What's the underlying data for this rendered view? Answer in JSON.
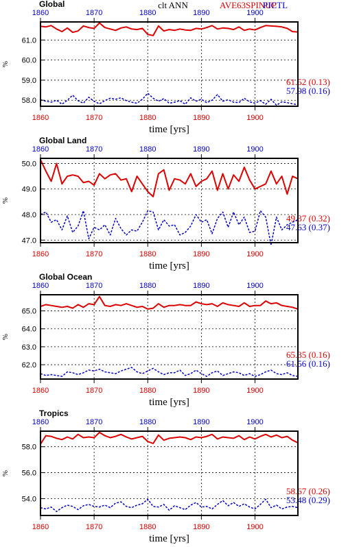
{
  "header": {
    "title": "clt ANN",
    "run_a": "AVE63SPINUP",
    "run_b": "PICTL",
    "color_a": "#dd0000",
    "color_b": "#0000cc"
  },
  "chart_data": [
    {
      "type": "line",
      "title": "Global",
      "xlabel": "time [yrs]",
      "ylabel": "%",
      "xlim": [
        1860,
        1908
      ],
      "ylim": [
        57.7,
        61.9
      ],
      "x_ticks": [
        1860,
        1870,
        1880,
        1890,
        1900
      ],
      "x_tick_labels": [
        "1860",
        "1870",
        "1880",
        "1890",
        "1900"
      ],
      "y_ticks": [
        58.0,
        59.0,
        60.0,
        61.0
      ],
      "y_tick_labels": [
        "58.0",
        "59.0",
        "60.0",
        "61.0"
      ],
      "grid": true,
      "series": [
        {
          "name": "AVE63SPINUP",
          "color": "#dd0000",
          "style": "solid",
          "summary": "61.52 (0.13)",
          "values": [
            61.68,
            61.65,
            61.72,
            61.55,
            61.42,
            61.6,
            61.38,
            61.45,
            61.7,
            61.62,
            61.58,
            61.85,
            61.62,
            61.55,
            61.48,
            61.6,
            61.65,
            61.55,
            61.52,
            61.58,
            61.28,
            61.22,
            61.7,
            61.45,
            61.52,
            61.48,
            61.55,
            61.5,
            61.48,
            61.58,
            61.55,
            61.62,
            61.72,
            61.55,
            61.6,
            61.58,
            61.52,
            61.65,
            61.48,
            61.55,
            61.5,
            61.62,
            61.72,
            61.7,
            61.68,
            61.65,
            61.58,
            61.42,
            61.4
          ]
        },
        {
          "name": "PICTL",
          "color": "#0000cc",
          "style": "dashed",
          "summary": "57.98 (0.16)",
          "values": [
            58.02,
            57.95,
            57.9,
            58.0,
            57.8,
            58.0,
            58.25,
            57.98,
            57.85,
            58.15,
            57.95,
            57.82,
            57.98,
            58.1,
            58.05,
            58.12,
            57.98,
            57.9,
            57.85,
            58.05,
            58.35,
            58.1,
            57.95,
            58.08,
            57.85,
            57.9,
            57.98,
            57.8,
            58.12,
            57.95,
            58.05,
            57.88,
            58.0,
            58.28,
            57.95,
            58.02,
            57.9,
            57.88,
            58.1,
            57.92,
            57.85,
            57.98,
            57.8,
            58.05,
            57.75,
            57.92,
            57.88,
            57.82,
            57.78
          ]
        }
      ]
    },
    {
      "type": "line",
      "title": "Global Land",
      "xlabel": "time [yrs]",
      "ylabel": "%",
      "xlim": [
        1860,
        1908
      ],
      "ylim": [
        46.9,
        50.2
      ],
      "x_ticks": [
        1860,
        1870,
        1880,
        1890,
        1900
      ],
      "x_tick_labels": [
        "1860",
        "1870",
        "1880",
        "1890",
        "1900"
      ],
      "y_ticks": [
        47.0,
        48.0,
        49.0,
        50.0
      ],
      "y_tick_labels": [
        "47.0",
        "48.0",
        "49.0",
        "50.0"
      ],
      "grid": true,
      "series": [
        {
          "name": "AVE63SPINUP",
          "color": "#dd0000",
          "style": "solid",
          "summary": "49.37 (0.32)",
          "values": [
            50.15,
            49.7,
            49.3,
            50.0,
            49.2,
            49.5,
            49.55,
            49.5,
            49.25,
            49.3,
            49.15,
            49.6,
            49.4,
            49.55,
            49.6,
            49.35,
            49.4,
            48.9,
            49.5,
            49.2,
            48.9,
            48.7,
            49.6,
            49.75,
            48.95,
            49.4,
            49.35,
            49.2,
            49.6,
            49.1,
            49.3,
            49.4,
            49.7,
            48.95,
            49.6,
            49.0,
            49.55,
            49.3,
            49.85,
            49.35,
            49.0,
            49.1,
            49.2,
            49.7,
            49.2,
            49.5,
            48.8,
            49.5,
            49.4
          ]
        },
        {
          "name": "PICTL",
          "color": "#0000cc",
          "style": "dashed",
          "summary": "47.63 (0.37)",
          "values": [
            48.0,
            48.1,
            47.7,
            47.8,
            47.4,
            47.95,
            47.3,
            47.55,
            48.15,
            47.05,
            47.5,
            47.4,
            47.6,
            47.2,
            47.85,
            47.45,
            47.2,
            47.4,
            47.35,
            47.7,
            48.15,
            48.1,
            47.4,
            47.8,
            47.55,
            47.6,
            47.2,
            47.3,
            47.55,
            48.0,
            47.7,
            47.8,
            47.25,
            47.85,
            48.1,
            47.5,
            48.1,
            47.6,
            47.9,
            47.3,
            47.35,
            48.15,
            47.9,
            46.8,
            47.9,
            47.4,
            47.6,
            47.7,
            47.8
          ]
        }
      ]
    },
    {
      "type": "line",
      "title": "Global Ocean",
      "xlabel": "time [yrs]",
      "ylabel": "%",
      "xlim": [
        1860,
        1908
      ],
      "ylim": [
        61.2,
        65.9
      ],
      "x_ticks": [
        1860,
        1870,
        1880,
        1890,
        1900
      ],
      "x_tick_labels": [
        "1860",
        "1870",
        "1880",
        "1890",
        "1900"
      ],
      "y_ticks": [
        62.0,
        63.0,
        64.0,
        65.0
      ],
      "y_tick_labels": [
        "62.0",
        "63.0",
        "64.0",
        "65.0"
      ],
      "grid": true,
      "series": [
        {
          "name": "AVE63SPINUP",
          "color": "#dd0000",
          "style": "solid",
          "summary": "65.35 (0.16)",
          "values": [
            65.25,
            65.35,
            65.3,
            65.25,
            65.2,
            65.25,
            65.15,
            65.35,
            65.2,
            65.4,
            65.35,
            65.8,
            65.3,
            65.25,
            65.35,
            65.3,
            65.4,
            65.3,
            65.2,
            65.25,
            65.1,
            65.15,
            65.4,
            65.2,
            65.3,
            65.3,
            65.35,
            65.3,
            65.3,
            65.5,
            65.4,
            65.35,
            65.4,
            65.25,
            65.45,
            65.35,
            65.3,
            65.25,
            65.45,
            65.25,
            65.3,
            65.3,
            65.55,
            65.4,
            65.45,
            65.3,
            65.25,
            65.2,
            65.1
          ]
        },
        {
          "name": "PICTL",
          "color": "#0000cc",
          "style": "dashed",
          "summary": "61.56 (0.16)",
          "values": [
            61.5,
            61.4,
            61.45,
            61.4,
            61.35,
            61.6,
            61.55,
            61.45,
            61.55,
            61.7,
            61.65,
            61.75,
            61.6,
            61.55,
            61.5,
            61.65,
            61.75,
            61.85,
            61.6,
            61.5,
            61.65,
            61.8,
            61.6,
            61.45,
            61.55,
            61.55,
            61.7,
            61.4,
            61.5,
            61.7,
            61.5,
            61.35,
            61.55,
            61.65,
            61.4,
            61.5,
            61.6,
            61.55,
            61.4,
            61.5,
            61.35,
            61.45,
            61.6,
            61.7,
            61.5,
            61.45,
            61.55,
            61.4,
            61.35
          ]
        }
      ]
    },
    {
      "type": "line",
      "title": "Tropics",
      "xlabel": "time [yrs]",
      "ylabel": "%",
      "xlim": [
        1860,
        1908
      ],
      "ylim": [
        52.7,
        59.2
      ],
      "x_ticks": [
        1860,
        1870,
        1880,
        1890,
        1900
      ],
      "x_tick_labels": [
        "1860",
        "1870",
        "1880",
        "1890",
        "1900"
      ],
      "y_ticks": [
        54.0,
        56.0,
        58.0
      ],
      "y_tick_labels": [
        "54.0",
        "56.0",
        "58.0"
      ],
      "grid": true,
      "series": [
        {
          "name": "AVE63SPINUP",
          "color": "#dd0000",
          "style": "solid",
          "summary": "58.67 (0.26)",
          "values": [
            58.2,
            58.85,
            58.8,
            58.65,
            58.55,
            58.75,
            58.6,
            58.95,
            58.7,
            58.75,
            58.7,
            59.1,
            58.85,
            58.7,
            58.8,
            58.95,
            58.75,
            58.6,
            58.7,
            58.8,
            58.4,
            58.25,
            58.9,
            58.5,
            58.65,
            58.7,
            58.75,
            58.7,
            58.55,
            58.75,
            58.7,
            58.8,
            58.95,
            58.6,
            58.75,
            58.7,
            58.65,
            58.85,
            58.55,
            58.75,
            58.6,
            58.8,
            58.95,
            58.75,
            58.9,
            58.7,
            58.8,
            58.5,
            58.3
          ]
        },
        {
          "name": "PICTL",
          "color": "#0000cc",
          "style": "dashed",
          "summary": "53.48 (0.29)",
          "values": [
            53.3,
            53.2,
            53.35,
            53.0,
            53.3,
            53.5,
            53.4,
            53.15,
            53.45,
            53.55,
            53.4,
            53.35,
            53.5,
            53.3,
            53.65,
            53.75,
            53.4,
            53.3,
            53.5,
            53.6,
            53.95,
            53.4,
            53.35,
            53.55,
            53.1,
            53.45,
            53.3,
            53.15,
            53.5,
            53.7,
            53.35,
            53.4,
            53.2,
            53.55,
            53.85,
            53.45,
            53.7,
            53.4,
            53.6,
            53.35,
            53.2,
            53.55,
            53.95,
            53.3,
            53.5,
            53.2,
            53.35,
            53.4,
            53.3
          ]
        }
      ]
    }
  ]
}
